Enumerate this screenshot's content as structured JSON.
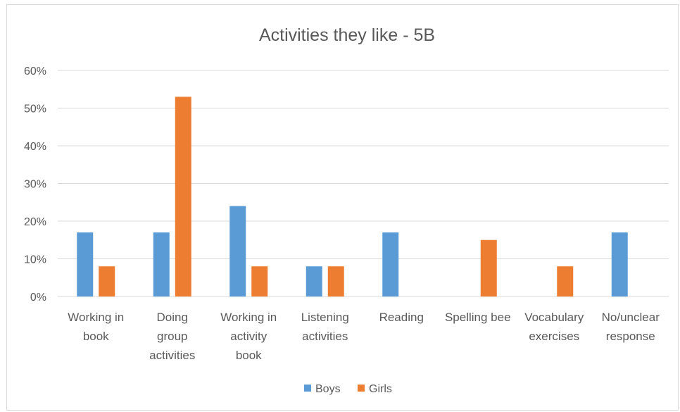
{
  "chart_data": {
    "type": "bar",
    "title": "Activities they like - 5B",
    "categories": [
      [
        "Working in",
        "book"
      ],
      [
        "Doing",
        "group",
        "activities"
      ],
      [
        "Working in",
        "activity",
        "book"
      ],
      [
        "Listening",
        "activities"
      ],
      [
        "Reading"
      ],
      [
        "Spelling bee"
      ],
      [
        "Vocabulary",
        "exercises"
      ],
      [
        "No/unclear",
        "response"
      ]
    ],
    "series": [
      {
        "name": "Boys",
        "color": "#5b9bd5",
        "values": [
          17,
          17,
          24,
          8,
          17,
          0,
          0,
          17
        ]
      },
      {
        "name": "Girls",
        "color": "#ed7d31",
        "values": [
          8,
          53,
          8,
          8,
          0,
          15,
          8,
          0
        ]
      }
    ],
    "ylim": [
      0,
      60
    ],
    "yticks": [
      "0%",
      "10%",
      "20%",
      "30%",
      "40%",
      "50%",
      "60%"
    ],
    "grid": true,
    "legend": "bottom"
  }
}
